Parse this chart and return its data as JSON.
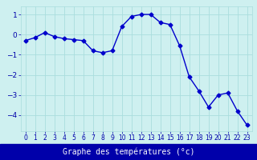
{
  "hours": [
    0,
    1,
    2,
    3,
    4,
    5,
    6,
    7,
    8,
    9,
    10,
    11,
    12,
    13,
    14,
    15,
    16,
    17,
    18,
    19,
    20,
    21,
    22,
    23
  ],
  "temps": [
    -0.3,
    -0.15,
    0.1,
    -0.1,
    -0.2,
    -0.25,
    -0.3,
    -0.8,
    -0.9,
    -0.8,
    0.4,
    0.9,
    1.0,
    1.0,
    0.6,
    0.5,
    -0.55,
    -2.1,
    -2.8,
    -3.6,
    -3.0,
    -2.9,
    -3.8,
    -4.5
  ],
  "xlabel": "Graphe des températures (°c)",
  "xlim": [
    -0.5,
    23.5
  ],
  "ylim": [
    -4.8,
    1.4
  ],
  "yticks": [
    -4,
    -3,
    -2,
    -1,
    0,
    1
  ],
  "xticks": [
    0,
    1,
    2,
    3,
    4,
    5,
    6,
    7,
    8,
    9,
    10,
    11,
    12,
    13,
    14,
    15,
    16,
    17,
    18,
    19,
    20,
    21,
    22,
    23
  ],
  "line_color": "#0000cc",
  "marker": "D",
  "marker_size": 2.5,
  "bg_color": "#cef0f0",
  "grid_color": "#aadddd",
  "xlabel_bg": "#0000aa",
  "xlabel_text_color": "#ffffff",
  "tick_color": "#0000aa",
  "tick_fontsize": 5.5,
  "ytick_fontsize": 6.5,
  "xlabel_fontsize": 7.0
}
